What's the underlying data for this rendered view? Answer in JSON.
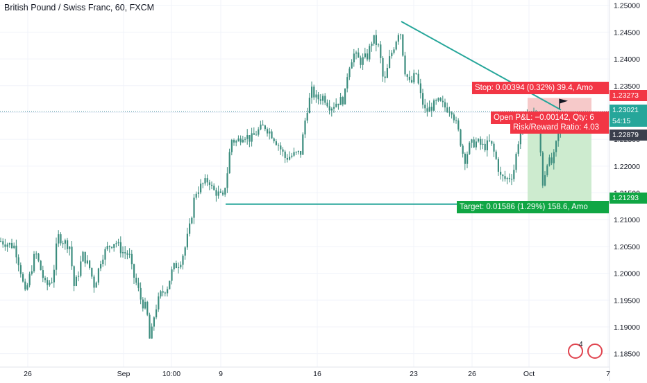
{
  "header": {
    "title": "British Pound / Swiss Franc, 60, FXCM"
  },
  "colors": {
    "up": "#26a69a",
    "down": "#ef5350",
    "candle": "#3c8d7e",
    "trend": "#26a69a",
    "stop_zone": "#f6c9c9",
    "target_zone": "#cdebcf",
    "stop_label": "#f23645",
    "target_label": "#10a644",
    "pnl_label": "#f23645",
    "axis_text": "#131722",
    "grid": "#f0f3fa",
    "dotted": "#3d8a9c"
  },
  "chart_data": {
    "type": "candlestick",
    "symbol": "British Pound / Swiss Franc",
    "interval": "60",
    "source": "FXCM",
    "ylim": [
      1.1825,
      1.251
    ],
    "y_ticks": [
      "1.25000",
      "1.24500",
      "1.24000",
      "1.23500",
      "1.23000",
      "1.22500",
      "1.22000",
      "1.21500",
      "1.21000",
      "1.20500",
      "1.20000",
      "1.19500",
      "1.19000",
      "1.18500"
    ],
    "x_ticks": [
      "26",
      "Sep",
      "10:00",
      "9",
      "16",
      "23",
      "26",
      "Oct",
      "7"
    ],
    "price_path": [
      [
        0,
        1.206
      ],
      [
        10,
        1.2055
      ],
      [
        20,
        1.205
      ],
      [
        28,
        1.201
      ],
      [
        35,
        1.196
      ],
      [
        40,
        1.1985
      ],
      [
        50,
        1.204
      ],
      [
        58,
        1.2005
      ],
      [
        65,
        1.1975
      ],
      [
        75,
        1.199
      ],
      [
        82,
        1.207
      ],
      [
        90,
        1.206
      ],
      [
        100,
        1.205
      ],
      [
        105,
        1.1975
      ],
      [
        110,
        1.199
      ],
      [
        118,
        1.2035
      ],
      [
        128,
        1.201
      ],
      [
        135,
        1.1975
      ],
      [
        145,
        1.203
      ],
      [
        155,
        1.205
      ],
      [
        165,
        1.206
      ],
      [
        175,
        1.204
      ],
      [
        185,
        1.2035
      ],
      [
        190,
        1.2
      ],
      [
        197,
        1.1975
      ],
      [
        203,
        1.1945
      ],
      [
        210,
        1.1935
      ],
      [
        215,
        1.187
      ],
      [
        222,
        1.193
      ],
      [
        230,
        1.196
      ],
      [
        240,
        1.1975
      ],
      [
        248,
        1.201
      ],
      [
        258,
        1.202
      ],
      [
        265,
        1.2045
      ],
      [
        272,
        1.2085
      ],
      [
        280,
        1.215
      ],
      [
        290,
        1.2165
      ],
      [
        300,
        1.2175
      ],
      [
        305,
        1.2155
      ],
      [
        312,
        1.215
      ],
      [
        320,
        1.214
      ],
      [
        326,
        1.2185
      ],
      [
        332,
        1.225
      ],
      [
        340,
        1.2245
      ],
      [
        350,
        1.226
      ],
      [
        360,
        1.225
      ],
      [
        370,
        1.2265
      ],
      [
        380,
        1.2275
      ],
      [
        390,
        1.226
      ],
      [
        400,
        1.224
      ],
      [
        410,
        1.2215
      ],
      [
        420,
        1.222
      ],
      [
        432,
        1.2225
      ],
      [
        440,
        1.23
      ],
      [
        448,
        1.234
      ],
      [
        455,
        1.2325
      ],
      [
        465,
        1.233
      ],
      [
        475,
        1.231
      ],
      [
        485,
        1.232
      ],
      [
        495,
        1.2325
      ],
      [
        500,
        1.238
      ],
      [
        508,
        1.241
      ],
      [
        518,
        1.2395
      ],
      [
        528,
        1.2405
      ],
      [
        536,
        1.244
      ],
      [
        545,
        1.242
      ],
      [
        552,
        1.235
      ],
      [
        560,
        1.24
      ],
      [
        568,
        1.243
      ],
      [
        575,
        1.246
      ],
      [
        582,
        1.238
      ],
      [
        590,
        1.235
      ],
      [
        598,
        1.2375
      ],
      [
        605,
        1.233
      ],
      [
        612,
        1.23
      ],
      [
        620,
        1.231
      ],
      [
        630,
        1.232
      ],
      [
        640,
        1.231
      ],
      [
        650,
        1.2305
      ],
      [
        660,
        1.226
      ],
      [
        668,
        1.221
      ],
      [
        676,
        1.224
      ],
      [
        686,
        1.2245
      ],
      [
        696,
        1.2235
      ],
      [
        705,
        1.2245
      ],
      [
        712,
        1.222
      ],
      [
        720,
        1.218
      ],
      [
        728,
        1.2175
      ],
      [
        738,
        1.2185
      ],
      [
        746,
        1.225
      ],
      [
        752,
        1.229
      ],
      [
        760,
        1.2285
      ],
      [
        768,
        1.2305
      ],
      [
        775,
        1.227
      ],
      [
        781,
        1.2165
      ],
      [
        787,
        1.221
      ],
      [
        795,
        1.2205
      ],
      [
        803,
        1.226
      ],
      [
        808,
        1.2285
      ]
    ],
    "trendlines": [
      {
        "from": [
          578,
          1.247
        ],
        "to": [
          808,
          1.2305
        ]
      },
      {
        "from": [
          325,
          1.2129
        ],
        "to": [
          862,
          1.2129
        ]
      }
    ],
    "position": {
      "type": "short",
      "entry": 1.22879,
      "stop": 1.23273,
      "target": 1.21293,
      "current": 1.23021,
      "start_bar": 760,
      "end_bar": 852
    },
    "annotations": {
      "stop_text": "Stop: 0.00394 (0.32%) 39.4, Amo",
      "pnl_text": "Open P&L: −0.00142, Qty: 6",
      "rr_text": "Risk/Reward Ratio: 4.03",
      "target_text": "Target: 0.01586 (1.29%) 158.6, Amo"
    },
    "price_tags": {
      "stop": "1.23273",
      "current": "1.23021",
      "countdown": "54:15",
      "entry": "1.22879",
      "target": "1.21293"
    },
    "grid": true
  },
  "toolbar": {
    "badge_count": "4"
  }
}
